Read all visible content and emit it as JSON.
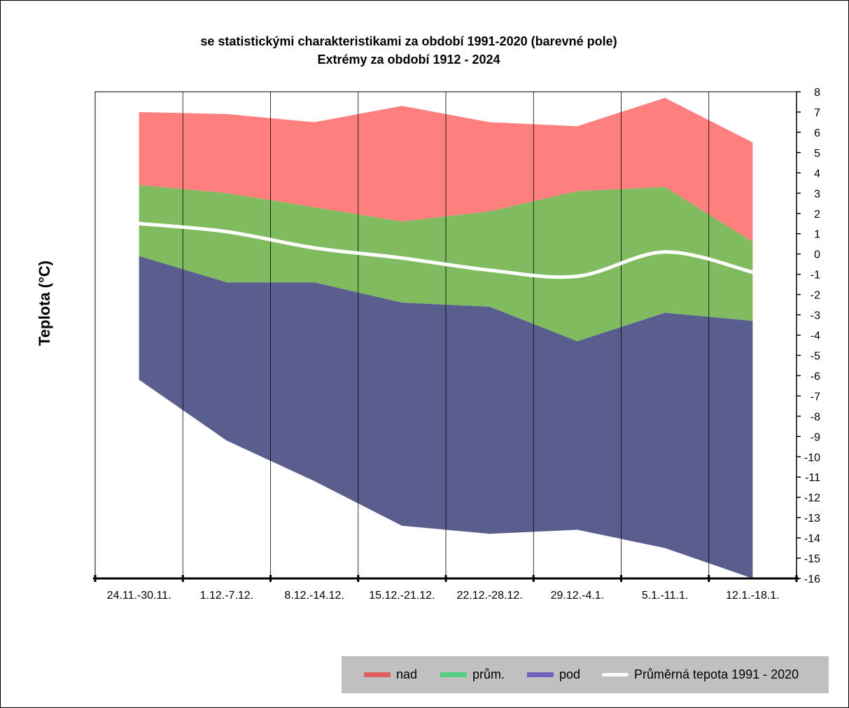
{
  "chart_data": {
    "type": "area",
    "title_lines": [
      "se statistickými charakteristikami za období 1991-2020 (barevné pole)",
      "Extrémy za období 1912 - 2024"
    ],
    "ylabel": "Teplota (°C)",
    "xlabel": "",
    "ylim": [
      -16,
      8
    ],
    "y_ticks": [
      8,
      7,
      6,
      5,
      4,
      3,
      2,
      1,
      0,
      -1,
      -2,
      -3,
      -4,
      -5,
      -6,
      -7,
      -8,
      -9,
      -10,
      -11,
      -12,
      -13,
      -14,
      -15,
      -16
    ],
    "categories": [
      "24.11.-30.11.",
      "1.12.-7.12.",
      "8.12.-14.12.",
      "15.12.-21.12.",
      "22.12.-28.12.",
      "29.12.-4.1.",
      "5.1.-11.1.",
      "12.1.-18.1."
    ],
    "series": [
      {
        "name": "nad",
        "color": "#ff7f7f",
        "legend_color": "#e06060",
        "kind": "band",
        "upper": [
          7.0,
          6.9,
          6.5,
          7.3,
          6.5,
          6.3,
          7.7,
          5.5
        ],
        "lower": [
          3.4,
          3.0,
          2.3,
          1.6,
          2.1,
          3.1,
          3.3,
          0.6
        ]
      },
      {
        "name": "prům.",
        "color": "#80bb60",
        "legend_color": "#50d080",
        "kind": "band",
        "upper": [
          3.4,
          3.0,
          2.3,
          1.6,
          2.1,
          3.1,
          3.3,
          0.6
        ],
        "lower": [
          -0.1,
          -1.4,
          -1.4,
          -2.4,
          -2.6,
          -4.3,
          -2.9,
          -3.3
        ]
      },
      {
        "name": "pod",
        "color": "#5a5e8e",
        "legend_color": "#7060c0",
        "kind": "band",
        "upper": [
          -0.1,
          -1.4,
          -1.4,
          -2.4,
          -2.6,
          -4.3,
          -2.9,
          -3.3
        ],
        "lower": [
          -6.2,
          -9.2,
          -11.2,
          -13.4,
          -13.8,
          -13.6,
          -14.5,
          -16.0
        ]
      },
      {
        "name": "Průměrná tepota 1991 - 2020",
        "color": "#ffffff",
        "legend_color": "#ffffff",
        "kind": "line",
        "values": [
          1.5,
          1.1,
          0.3,
          -0.2,
          -0.8,
          -1.1,
          0.1,
          -0.9
        ]
      }
    ],
    "grid": "vertical",
    "legend_position": "bottom-right"
  }
}
